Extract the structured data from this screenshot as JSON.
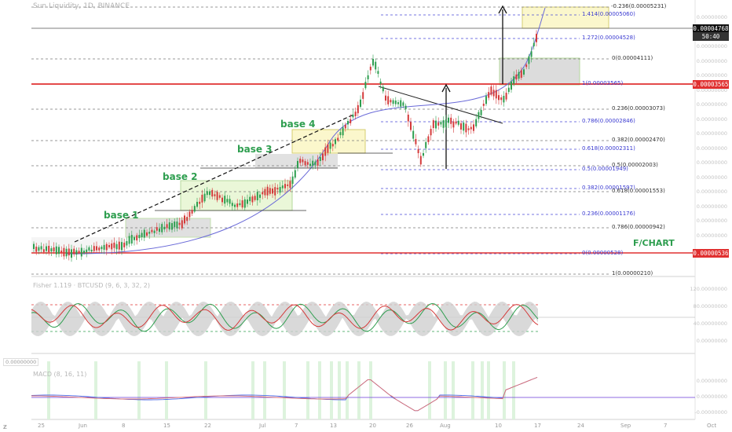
{
  "header": {
    "symbol_title": "Sun Liquidity, 1D, BINANCE"
  },
  "price_scale": {
    "labels": [
      "0.00000000",
      "0.00000000",
      "0.00000000",
      "0.00000000",
      "0.00000000",
      "0.00000000",
      "0.00000000",
      "0.00000000",
      "0.00000000",
      "0.00000000",
      "0.00000000",
      "0.00000000",
      "0.00000000",
      "0.00000000",
      "0.00000000",
      "0.00000000"
    ],
    "current_price": "0.00004768",
    "countdown": "50:40",
    "resistance_price": "0.00003565",
    "support_price": "0.00000536"
  },
  "fib_levels_upper": [
    {
      "text": "-0.236(0.00005231)",
      "color": "gray"
    },
    {
      "text": "1.414(0.00005060)",
      "color": "blue"
    },
    {
      "text": "1.272(0.00004528)",
      "color": "blue"
    },
    {
      "text": "0(0.00004111)",
      "color": "gray"
    },
    {
      "text": "1(0.00003565)",
      "color": "blue"
    },
    {
      "text": "0.236(0.00003073)",
      "color": "gray"
    },
    {
      "text": "0.786(0.00002846)",
      "color": "blue"
    },
    {
      "text": "0.382(0.00002470)",
      "color": "gray"
    },
    {
      "text": "0.618(0.00002311)",
      "color": "blue"
    },
    {
      "text": "0.5(0.00002003)",
      "color": "gray"
    },
    {
      "text": "0.5(0.00001949)",
      "color": "blue"
    },
    {
      "text": "0.382(0.00001597)",
      "color": "blue"
    },
    {
      "text": "0.618(0.00001553)",
      "color": "gray"
    },
    {
      "text": "0.236(0.00001176)",
      "color": "blue"
    },
    {
      "text": "0.786(0.00000942)",
      "color": "gray"
    },
    {
      "text": "0(0.00000528)",
      "color": "blue"
    },
    {
      "text": "1(0.00000210)",
      "color": "gray"
    }
  ],
  "annotations": {
    "base1": "base 1",
    "base2": "base 2",
    "base3": "base 3",
    "base4": "base 4",
    "watermark": "F/CHART"
  },
  "oscillator_pane": {
    "title": "Fisher 1.119 · BTCUSD (9, 6, 3, 32, 2)",
    "axis": [
      "120.00000000",
      "80.00000000",
      "40.00000000",
      "0.00000000"
    ]
  },
  "macd_pane": {
    "title": "MACD (8, 16, 11)",
    "left_value": "0.00000000",
    "axis": [
      "0.00000000",
      "0.00000000",
      "-0.00000000"
    ]
  },
  "time_axis": [
    "25",
    "Jun",
    "8",
    "15",
    "22",
    "Jul",
    "7",
    "13",
    "20",
    "26",
    "Aug",
    "10",
    "17",
    "24",
    "Sep",
    "7",
    "Oct"
  ],
  "colors": {
    "resistance": "#e03030",
    "support": "#e03030",
    "fib_gray": "#7a7a7a",
    "fib_blue": "#4a4ad6",
    "up": "#2e9e4f",
    "down": "#d43a3a",
    "base_box": "#d9f2b8",
    "grey_box": "#d9d9d9"
  }
}
